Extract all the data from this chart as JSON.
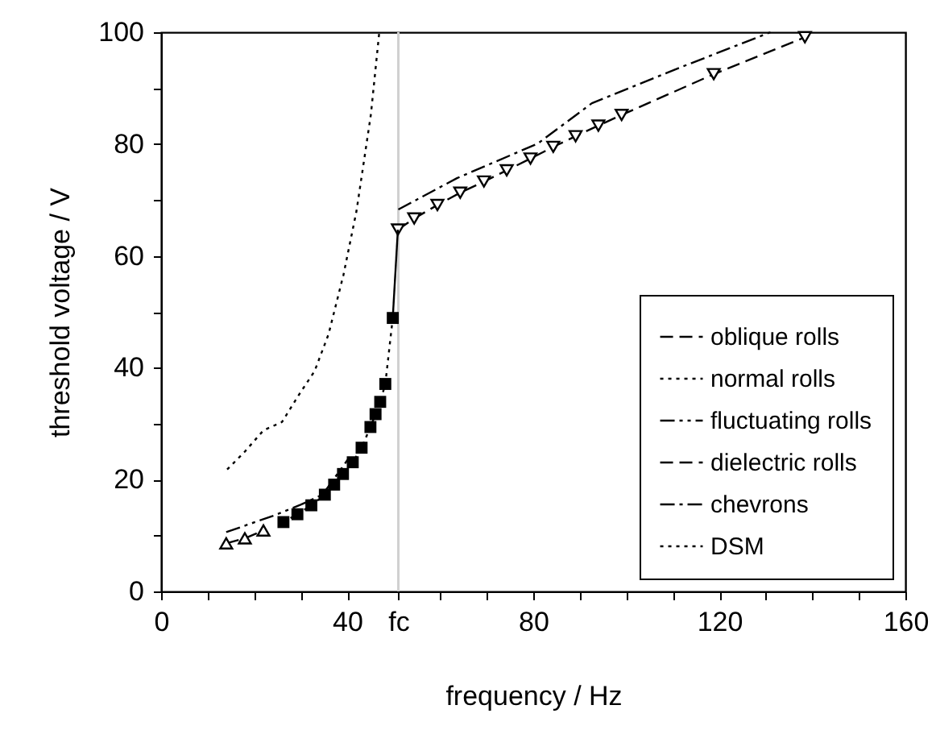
{
  "chart_data": {
    "type": "line",
    "xlabel": "frequency / Hz",
    "ylabel": "threshold voltage / V",
    "xlim": [
      0,
      160
    ],
    "ylim": [
      0,
      100
    ],
    "xticks": [
      0,
      {
        "value": 10,
        "label": null
      },
      {
        "value": 20,
        "label": null
      },
      {
        "value": 30,
        "label": null
      },
      40,
      {
        "value": 51,
        "label": "fc"
      },
      {
        "value": 60,
        "label": null
      },
      {
        "value": 70,
        "label": null
      },
      80,
      {
        "value": 90,
        "label": null
      },
      {
        "value": 100,
        "label": null
      },
      {
        "value": 110,
        "label": null
      },
      120,
      {
        "value": 130,
        "label": null
      },
      {
        "value": 140,
        "label": null
      },
      {
        "value": 150,
        "label": null
      },
      160
    ],
    "yticks": [
      0,
      {
        "value": 10,
        "label": null
      },
      20,
      {
        "value": 30,
        "label": null
      },
      40,
      {
        "value": 50,
        "label": null
      },
      60,
      {
        "value": 70,
        "label": null
      },
      80,
      {
        "value": 90,
        "label": null
      },
      100
    ],
    "grid": false,
    "legend": "bottom right",
    "ref_lines": [
      {
        "axis": "x",
        "value": 51,
        "color": "#d0d0d0",
        "line_style": "solid"
      }
    ],
    "series": [
      {
        "name": "oblique rolls",
        "color": "#000000",
        "marker": "triangle",
        "line_style": "dashed",
        "x": [
          14,
          18,
          22
        ],
        "values": [
          8.6,
          9.5,
          10.9
        ]
      },
      {
        "name": "normal rolls",
        "color": "#000000",
        "marker": "square",
        "line_style": "dotted",
        "x": [
          26.3,
          29.3,
          32.3,
          35.2,
          37.2,
          39.1,
          41.2,
          43.1,
          45.0,
          46.1,
          47.1,
          48.2,
          49.8
        ],
        "values": [
          12.4,
          13.8,
          15.4,
          17.3,
          19.1,
          21.0,
          23.1,
          25.7,
          29.4,
          31.7,
          33.9,
          37.1,
          48.9
        ]
      },
      {
        "name": "fluctuating rolls",
        "color": "#000000",
        "marker": "none",
        "line_style": "dashdotdot",
        "x": [
          14,
          24,
          30,
          34.7,
          40.5
        ],
        "values": [
          10.6,
          13.5,
          15.5,
          17.3,
          24
        ]
      },
      {
        "name": "dielectric rolls",
        "color": "#000000",
        "marker": "triangle-down",
        "line_style": "dashed",
        "x": [
          50.9,
          54.4,
          59.4,
          64.3,
          69.4,
          74.3,
          79.4,
          84.3,
          89.1,
          94.0,
          99.0,
          118.8,
          138.4
        ],
        "values": [
          64.7,
          66.7,
          69.1,
          71.3,
          73.3,
          75.3,
          77.4,
          79.5,
          81.4,
          83.3,
          85.2,
          92.5,
          99.1
        ]
      },
      {
        "name": "chevrons",
        "color": "#000000",
        "marker": "none",
        "line_style": "dashdot",
        "x": [
          51,
          63.6,
          81,
          92.6,
          111,
          131
        ],
        "values": [
          68.3,
          73.9,
          80.1,
          87.3,
          93.5,
          100
        ]
      },
      {
        "name": "DSM",
        "color": "#000000",
        "marker": "none",
        "line_style": "dotted",
        "x": [
          14.2,
          18,
          22,
          26,
          29.5,
          33,
          36,
          39.2,
          42,
          45.1,
          46.9
        ],
        "values": [
          21.8,
          25,
          28.8,
          30.3,
          35,
          39.4,
          46,
          56.6,
          68,
          85.3,
          100
        ]
      },
      {
        "color": "#000000",
        "marker": "none",
        "line_style": "solid",
        "x": [
          49.8,
          50.9
        ],
        "values": [
          48.9,
          64.7
        ]
      }
    ]
  }
}
